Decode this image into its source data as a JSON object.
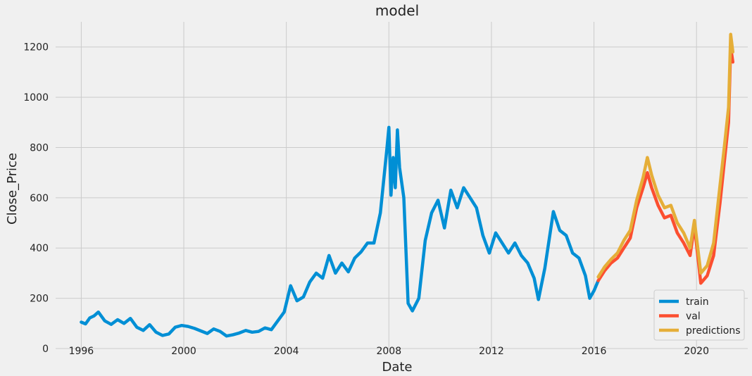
{
  "chart_data": {
    "type": "line",
    "title": "model",
    "xlabel": "Date",
    "ylabel": "Close_Price",
    "xlim": [
      "1995",
      "2022"
    ],
    "ylim": [
      0,
      1300
    ],
    "x_ticks": [
      "1996",
      "2000",
      "2004",
      "2008",
      "2012",
      "2016",
      "2020"
    ],
    "y_ticks": [
      0,
      200,
      400,
      600,
      800,
      1000,
      1200
    ],
    "grid": true,
    "legend_position": "lower-right",
    "series": [
      {
        "name": "train",
        "color": "#008fd5",
        "points": [
          [
            "1996-01",
            105
          ],
          [
            "1996-03",
            98
          ],
          [
            "1996-05",
            122
          ],
          [
            "1996-07",
            130
          ],
          [
            "1996-09",
            145
          ],
          [
            "1996-12",
            110
          ],
          [
            "1997-03",
            96
          ],
          [
            "1997-06",
            115
          ],
          [
            "1997-09",
            100
          ],
          [
            "1997-12",
            120
          ],
          [
            "1998-03",
            85
          ],
          [
            "1998-06",
            72
          ],
          [
            "1998-09",
            95
          ],
          [
            "1998-12",
            65
          ],
          [
            "1999-03",
            52
          ],
          [
            "1999-06",
            58
          ],
          [
            "1999-09",
            85
          ],
          [
            "1999-12",
            92
          ],
          [
            "2000-03",
            88
          ],
          [
            "2000-06",
            80
          ],
          [
            "2000-09",
            70
          ],
          [
            "2000-12",
            60
          ],
          [
            "2001-03",
            78
          ],
          [
            "2001-06",
            68
          ],
          [
            "2001-09",
            50
          ],
          [
            "2001-12",
            55
          ],
          [
            "2002-03",
            62
          ],
          [
            "2002-06",
            72
          ],
          [
            "2002-09",
            65
          ],
          [
            "2002-12",
            68
          ],
          [
            "2003-03",
            82
          ],
          [
            "2003-06",
            75
          ],
          [
            "2003-09",
            110
          ],
          [
            "2003-12",
            145
          ],
          [
            "2004-03",
            250
          ],
          [
            "2004-06",
            190
          ],
          [
            "2004-09",
            205
          ],
          [
            "2004-12",
            265
          ],
          [
            "2005-03",
            300
          ],
          [
            "2005-06",
            280
          ],
          [
            "2005-09",
            370
          ],
          [
            "2005-12",
            300
          ],
          [
            "2006-03",
            340
          ],
          [
            "2006-06",
            305
          ],
          [
            "2006-09",
            360
          ],
          [
            "2006-12",
            385
          ],
          [
            "2007-03",
            420
          ],
          [
            "2007-06",
            420
          ],
          [
            "2007-09",
            540
          ],
          [
            "2007-12",
            790
          ],
          [
            "2008-01",
            880
          ],
          [
            "2008-02",
            610
          ],
          [
            "2008-03",
            760
          ],
          [
            "2008-04",
            640
          ],
          [
            "2008-05",
            870
          ],
          [
            "2008-06",
            720
          ],
          [
            "2008-08",
            600
          ],
          [
            "2008-10",
            180
          ],
          [
            "2008-12",
            150
          ],
          [
            "2009-03",
            200
          ],
          [
            "2009-06",
            430
          ],
          [
            "2009-09",
            540
          ],
          [
            "2009-12",
            590
          ],
          [
            "2010-03",
            480
          ],
          [
            "2010-06",
            630
          ],
          [
            "2010-09",
            560
          ],
          [
            "2010-12",
            640
          ],
          [
            "2011-03",
            600
          ],
          [
            "2011-06",
            560
          ],
          [
            "2011-09",
            450
          ],
          [
            "2011-12",
            380
          ],
          [
            "2012-03",
            460
          ],
          [
            "2012-06",
            420
          ],
          [
            "2012-09",
            380
          ],
          [
            "2012-12",
            420
          ],
          [
            "2013-03",
            370
          ],
          [
            "2013-06",
            340
          ],
          [
            "2013-09",
            280
          ],
          [
            "2013-11",
            195
          ],
          [
            "2014-02",
            320
          ],
          [
            "2014-06",
            545
          ],
          [
            "2014-09",
            470
          ],
          [
            "2014-12",
            450
          ],
          [
            "2015-03",
            380
          ],
          [
            "2015-06",
            360
          ],
          [
            "2015-09",
            290
          ],
          [
            "2015-11",
            200
          ],
          [
            "2016-01",
            230
          ],
          [
            "2016-03",
            270
          ]
        ]
      },
      {
        "name": "val",
        "color": "#fc4f30",
        "points": [
          [
            "2016-03",
            270
          ],
          [
            "2016-06",
            310
          ],
          [
            "2016-09",
            340
          ],
          [
            "2016-12",
            360
          ],
          [
            "2017-03",
            400
          ],
          [
            "2017-06",
            440
          ],
          [
            "2017-09",
            560
          ],
          [
            "2017-12",
            640
          ],
          [
            "2018-02",
            700
          ],
          [
            "2018-04",
            640
          ],
          [
            "2018-07",
            570
          ],
          [
            "2018-10",
            520
          ],
          [
            "2019-01",
            530
          ],
          [
            "2019-04",
            460
          ],
          [
            "2019-07",
            420
          ],
          [
            "2019-10",
            370
          ],
          [
            "2019-12",
            490
          ],
          [
            "2020-03",
            260
          ],
          [
            "2020-06",
            290
          ],
          [
            "2020-09",
            370
          ],
          [
            "2020-12",
            580
          ],
          [
            "2021-02",
            740
          ],
          [
            "2021-04",
            900
          ],
          [
            "2021-05",
            1200
          ],
          [
            "2021-06",
            1140
          ]
        ]
      },
      {
        "name": "predictions",
        "color": "#e5ae38",
        "points": [
          [
            "2016-03",
            285
          ],
          [
            "2016-06",
            325
          ],
          [
            "2016-09",
            355
          ],
          [
            "2016-12",
            380
          ],
          [
            "2017-03",
            430
          ],
          [
            "2017-06",
            470
          ],
          [
            "2017-09",
            590
          ],
          [
            "2017-12",
            680
          ],
          [
            "2018-02",
            760
          ],
          [
            "2018-04",
            690
          ],
          [
            "2018-07",
            610
          ],
          [
            "2018-10",
            560
          ],
          [
            "2019-01",
            570
          ],
          [
            "2019-04",
            500
          ],
          [
            "2019-07",
            460
          ],
          [
            "2019-10",
            400
          ],
          [
            "2019-12",
            510
          ],
          [
            "2020-03",
            300
          ],
          [
            "2020-06",
            330
          ],
          [
            "2020-09",
            420
          ],
          [
            "2020-12",
            650
          ],
          [
            "2021-02",
            800
          ],
          [
            "2021-04",
            960
          ],
          [
            "2021-05",
            1250
          ],
          [
            "2021-06",
            1180
          ]
        ]
      }
    ]
  }
}
